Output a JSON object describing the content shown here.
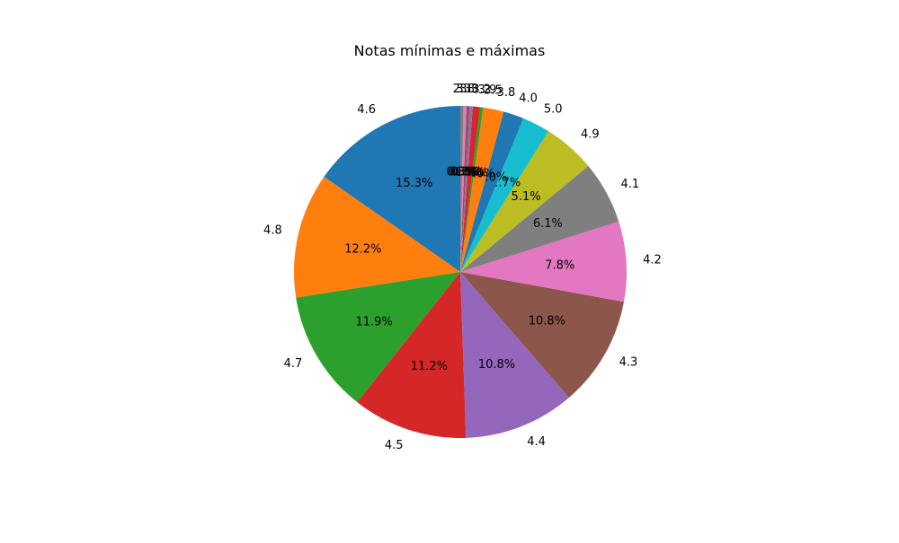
{
  "chart_data": {
    "type": "pie",
    "title": "Notas mínimas e máximas",
    "slices": [
      {
        "label": "4.6",
        "value": 15.3,
        "pct_label": "15.3%",
        "color": "#1f77b4"
      },
      {
        "label": "4.8",
        "value": 12.2,
        "pct_label": "12.2%",
        "color": "#ff7f0e"
      },
      {
        "label": "4.7",
        "value": 11.9,
        "pct_label": "11.9%",
        "color": "#2ca02c"
      },
      {
        "label": "4.5",
        "value": 11.2,
        "pct_label": "11.2%",
        "color": "#d62728"
      },
      {
        "label": "4.4",
        "value": 10.8,
        "pct_label": "10.8%",
        "color": "#9467bd"
      },
      {
        "label": "4.3",
        "value": 10.8,
        "pct_label": "10.8%",
        "color": "#8c564b"
      },
      {
        "label": "4.2",
        "value": 7.8,
        "pct_label": "7.8%",
        "color": "#e377c2"
      },
      {
        "label": "4.1",
        "value": 6.1,
        "pct_label": "6.1%",
        "color": "#7f7f7f"
      },
      {
        "label": "4.9",
        "value": 5.1,
        "pct_label": "5.1%",
        "color": "#bcbd22"
      },
      {
        "label": "5.0",
        "value": 2.7,
        "pct_label": "2.7%",
        "color": "#17becf"
      },
      {
        "label": "4.0",
        "value": 2.0,
        "pct_label": "2.0%",
        "color": "#1f77b4"
      },
      {
        "label": "3.8",
        "value": 2.0,
        "pct_label": "2.0%",
        "color": "#ff7f0e"
      },
      {
        "label": "3.5",
        "value": 0.3,
        "pct_label": "0.3%",
        "color": "#2ca02c"
      },
      {
        "label": "3.9",
        "value": 0.7,
        "pct_label": "0.7%",
        "color": "#d62728"
      },
      {
        "label": "3.2",
        "value": 0.3,
        "pct_label": "0.3%",
        "color": "#9467bd"
      },
      {
        "label": "3.3",
        "value": 0.3,
        "pct_label": "0.3%",
        "color": "#8c564b"
      },
      {
        "label": "3.8",
        "value": 0.3,
        "pct_label": "0.3%",
        "color": "#e377c2"
      },
      {
        "label": "2.3",
        "value": 0.3,
        "pct_label": "0.3%",
        "color": "#7f7f7f"
      }
    ],
    "start_angle_deg": 90,
    "direction": "counterclockwise",
    "legend": "none"
  }
}
